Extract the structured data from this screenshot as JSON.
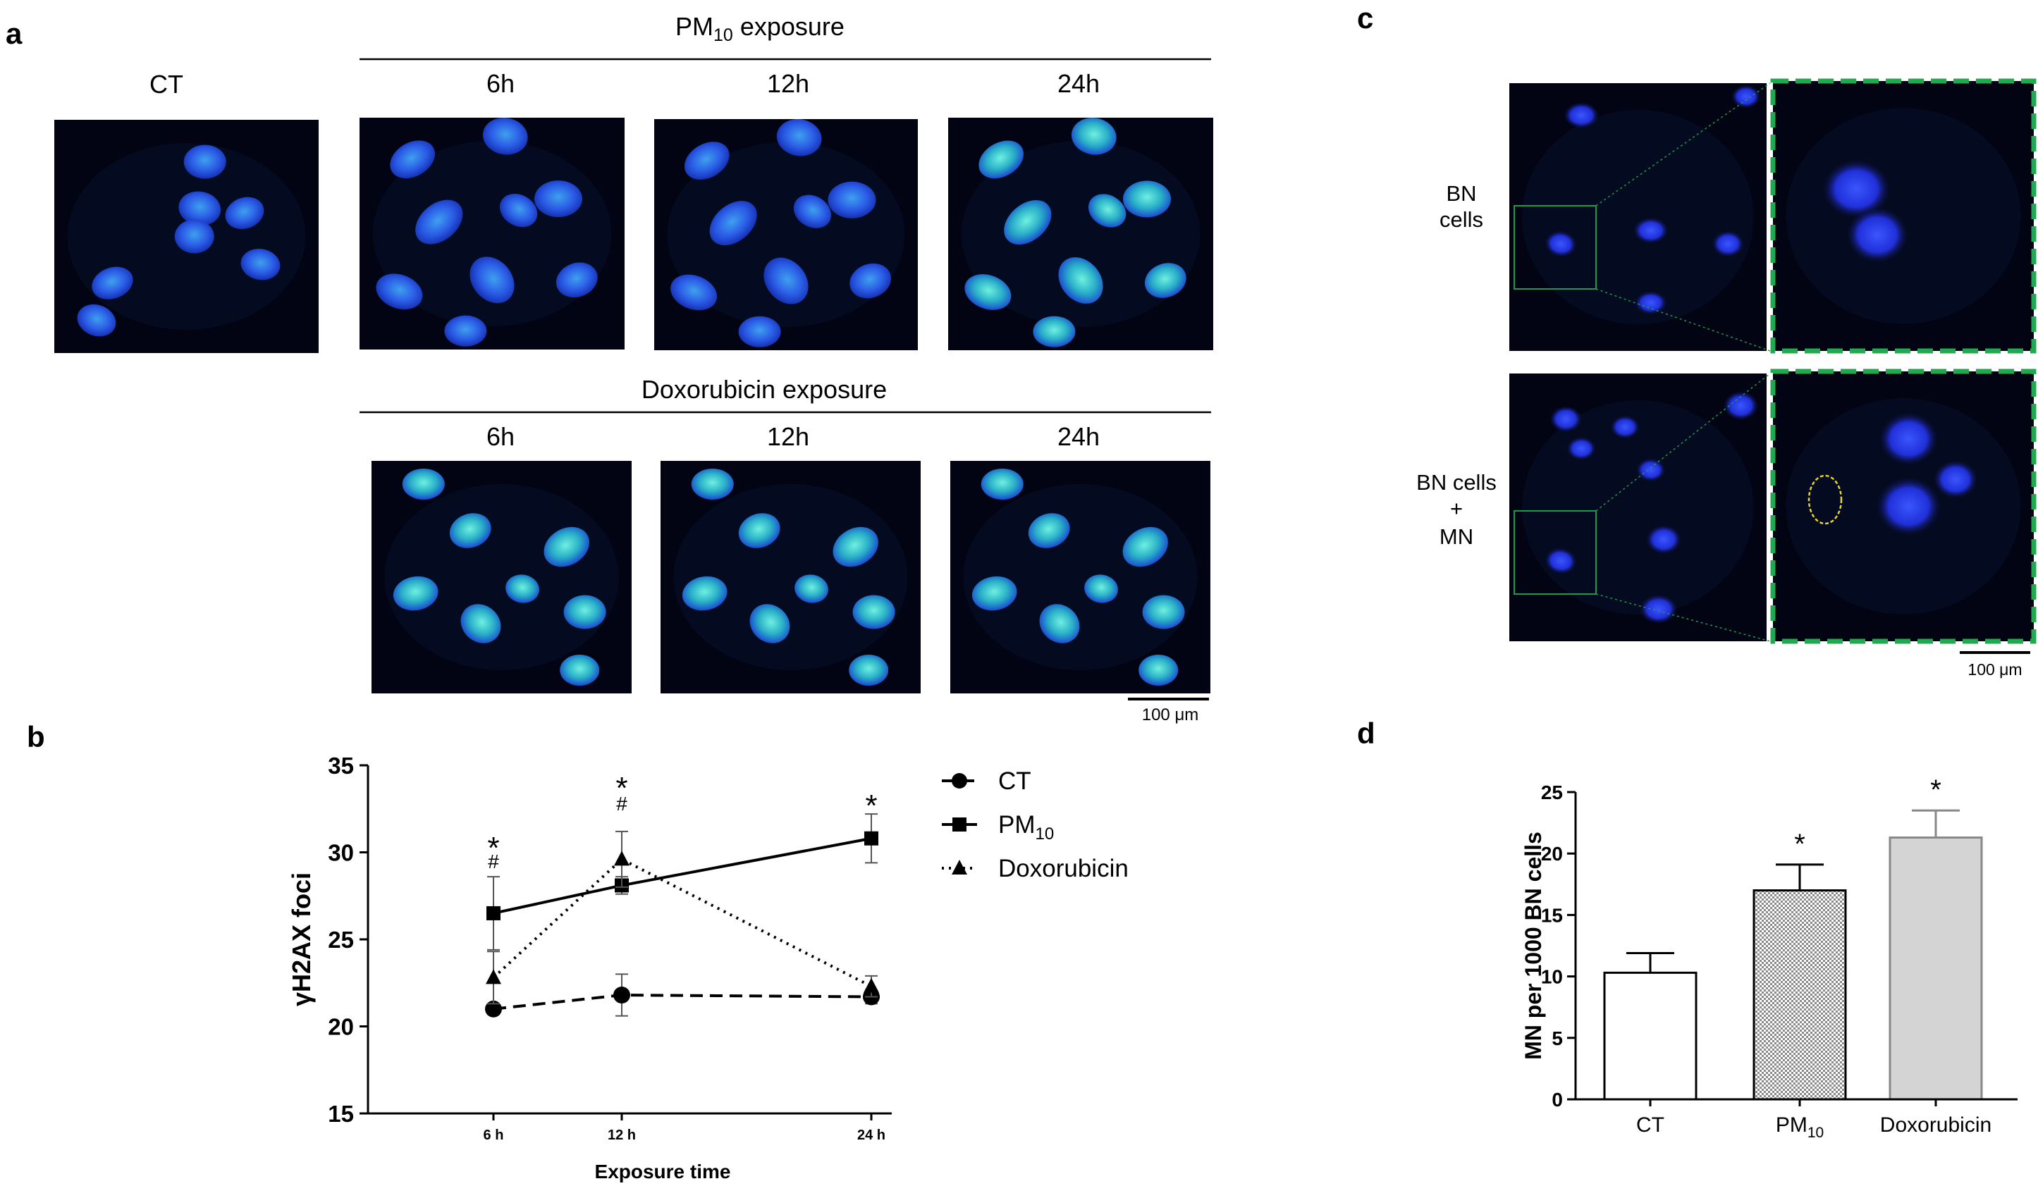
{
  "panels": {
    "a": {
      "letter": "a",
      "ct_label": "CT",
      "pm_header_main": "PM",
      "pm_header_sub": "10",
      "pm_header_suffix": " exposure",
      "dox_header": "Doxorubicin exposure",
      "pm_times": [
        "6h",
        "12h",
        "24h"
      ],
      "dox_times": [
        "6h",
        "12h",
        "24h"
      ],
      "scale_bar": "100 μm"
    },
    "b": {
      "letter": "b"
    },
    "c": {
      "letter": "c",
      "row1_label": [
        "BN",
        "cells"
      ],
      "row2_label": [
        "BN cells",
        "+",
        "MN"
      ],
      "scale_bar": "100 μm"
    },
    "d": {
      "letter": "d"
    }
  },
  "chart_data": [
    {
      "id": "b",
      "type": "line",
      "title": "",
      "xlabel": "Exposure time",
      "ylabel": "γH2AX foci",
      "categories": [
        "6 h",
        "12 h",
        "24 h"
      ],
      "ylim": [
        15,
        35
      ],
      "yticks": [
        15,
        20,
        25,
        30,
        35
      ],
      "grid": false,
      "legend_placement": "top-right",
      "series": [
        {
          "name": "CT",
          "marker": "circle",
          "line_style": "dashed",
          "values": [
            21.0,
            21.8,
            21.7
          ],
          "errors": [
            0.3,
            1.2,
            0.4
          ]
        },
        {
          "name": "PM",
          "name_sub": "10",
          "marker": "square",
          "line_style": "solid",
          "values": [
            26.5,
            28.1,
            30.8
          ],
          "errors": [
            2.1,
            0.5,
            1.4
          ]
        },
        {
          "name": "Doxorubicin",
          "marker": "triangle",
          "line_style": "dotted",
          "values": [
            22.8,
            29.6,
            22.3
          ],
          "errors": [
            1.5,
            1.6,
            0.6
          ]
        }
      ],
      "annotations": [
        {
          "category": "6 h",
          "symbols": [
            "*",
            "#"
          ]
        },
        {
          "category": "12 h",
          "symbols": [
            "*",
            "#"
          ]
        },
        {
          "category": "24 h",
          "symbols": [
            "*"
          ]
        }
      ]
    },
    {
      "id": "d",
      "type": "bar",
      "title": "",
      "xlabel": "",
      "ylabel": "MN per 1000 BN cells",
      "categories": [
        "CT",
        "PM",
        "Doxorubicin"
      ],
      "category_subs": [
        "",
        "10",
        ""
      ],
      "values": [
        10.3,
        17.0,
        21.3
      ],
      "errors": [
        1.6,
        2.1,
        2.2
      ],
      "fills": [
        "#ffffff",
        "pattern-checker",
        "#d4d4d4"
      ],
      "annotations": [
        "",
        "*",
        "*"
      ],
      "ylim": [
        0,
        25
      ],
      "yticks": [
        0,
        5,
        10,
        15,
        20,
        25
      ],
      "grid": false
    }
  ]
}
